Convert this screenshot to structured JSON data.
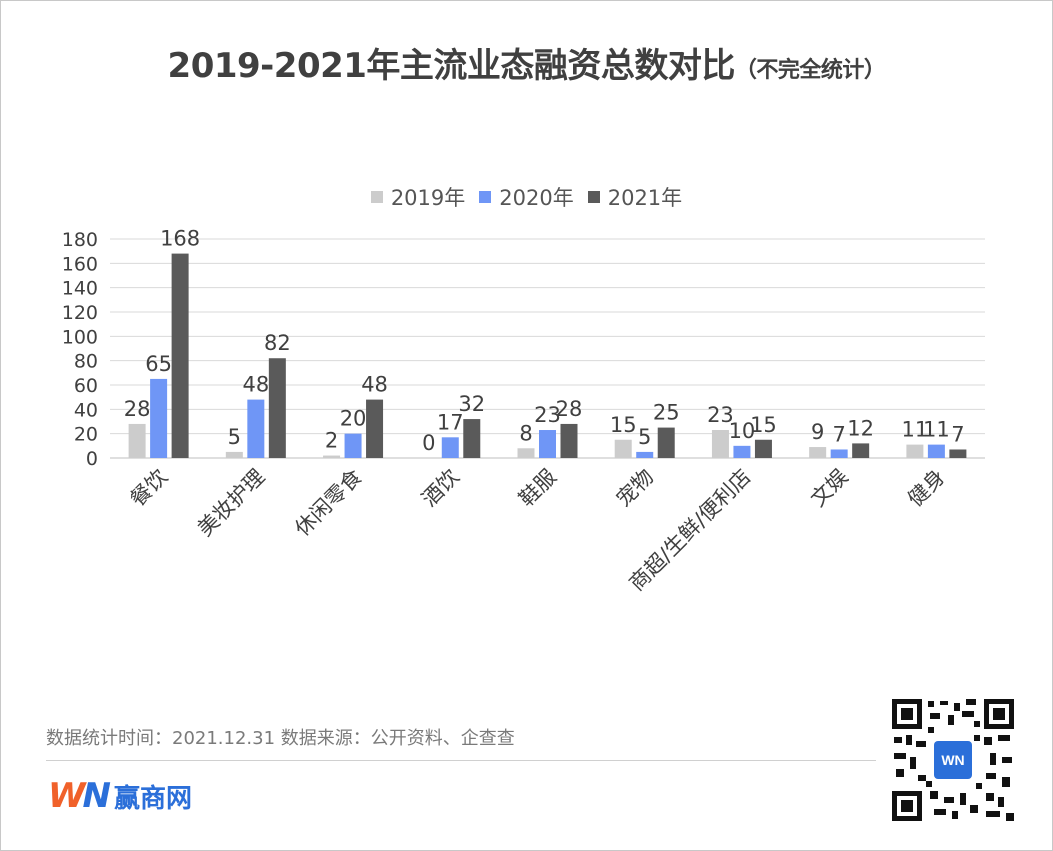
{
  "title": "2019-2021年主流业态融资总数对比",
  "subtitle": "（不完全统计）",
  "footer": {
    "note": "数据统计时间：2021.12.31  数据来源：公开资料、企查查",
    "logo_mark_w": "W",
    "logo_mark_n": "N",
    "logo_text": "赢商网",
    "qr_logo_text": "WN"
  },
  "colors": {
    "2019": "#cccccc",
    "2020": "#6f96f6",
    "2021": "#5a5a5a",
    "grid": "#d9d9d9",
    "text": "#404040"
  },
  "chart_data": {
    "type": "bar",
    "title": "2019-2021年主流业态融资总数对比",
    "categories": [
      "餐饮",
      "美妆护理",
      "休闲零食",
      "酒饮",
      "鞋服",
      "宠物",
      "商超/生鲜/便利店",
      "文娱",
      "健身"
    ],
    "series": [
      {
        "name": "2019年",
        "values": [
          28,
          5,
          2,
          0,
          8,
          15,
          23,
          9,
          11
        ]
      },
      {
        "name": "2020年",
        "values": [
          65,
          48,
          20,
          17,
          23,
          5,
          10,
          7,
          11
        ]
      },
      {
        "name": "2021年",
        "values": [
          168,
          82,
          48,
          32,
          28,
          25,
          15,
          12,
          7
        ]
      }
    ],
    "ylim": [
      0,
      180
    ],
    "yticks": [
      0,
      20,
      40,
      60,
      80,
      100,
      120,
      140,
      160,
      180
    ],
    "grid": true,
    "legend_position": "top-center",
    "xlabel": "",
    "ylabel": ""
  }
}
